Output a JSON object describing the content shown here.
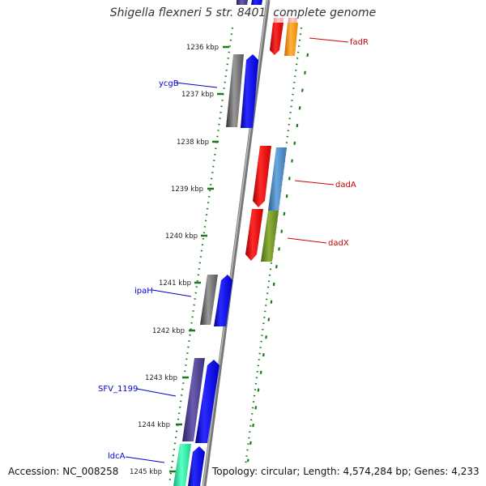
{
  "title": "Shigella flexneri 5 str. 8401, complete genome",
  "accession": "Accession: NC_008258",
  "summary": "Topology: circular; Length: 4,574,284 bp; Genes: 4,233",
  "ticks": [
    "1236 kbp",
    "1237 kbp",
    "1238 kbp",
    "1239 kbp",
    "1240 kbp",
    "1241 kbp",
    "1242 kbp",
    "1243 kbp",
    "1244 kbp",
    "1245 kbp"
  ],
  "genes": {
    "left": [
      "ycgB",
      "ipaH",
      "SFV_1199",
      "ldcA"
    ],
    "right": [
      "fadR",
      "dadA",
      "dadX"
    ]
  },
  "colors": {
    "forward_gene": "#0000ee",
    "reverse_gene": "#ee0000",
    "cds_gray": "#666666",
    "cds_purple": "#4b3f8f",
    "cds_orange": "#ff9900",
    "cds_steelblue": "#4a86c0",
    "cds_olive": "#6b8e23",
    "cds_teal": "#20e8a0",
    "tick_green": "#1a7a1a",
    "label_blue": "#0000cc",
    "label_red": "#cc0000"
  }
}
